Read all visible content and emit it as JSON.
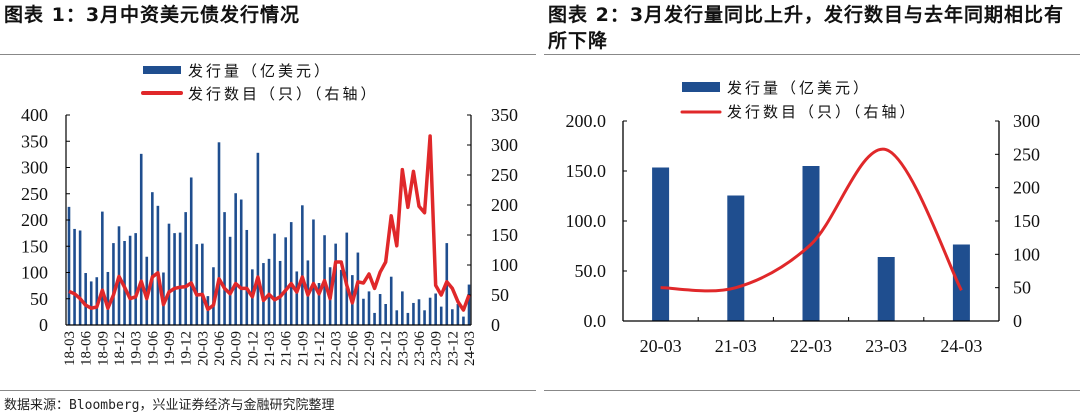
{
  "colors": {
    "bar": "#1F4E8F",
    "line": "#E0282A",
    "axis": "#000000",
    "rule": "#888888"
  },
  "source": "数据来源：Bloomberg，兴业证券经济与金融研究院整理",
  "chart_data": [
    {
      "type": "bar+line",
      "title": "图表 1：3月中资美元债发行情况",
      "legend": {
        "position": "top",
        "bar": "发行量（亿美元）",
        "line": "发行数目（只）（右轴）"
      },
      "x_tick_labels": [
        "18-03",
        "18-06",
        "18-09",
        "18-12",
        "19-03",
        "19-06",
        "19-09",
        "19-12",
        "20-03",
        "20-06",
        "20-09",
        "20-12",
        "21-03",
        "21-06",
        "21-09",
        "21-12",
        "22-03",
        "22-06",
        "22-09",
        "22-12",
        "23-03",
        "23-06",
        "23-09",
        "23-12",
        "24-03"
      ],
      "x_range": [
        "18-03",
        "24-03"
      ],
      "x_frequency": "monthly",
      "y_left": {
        "range": [
          0,
          400
        ],
        "ticks": [
          "0",
          "50",
          "100",
          "150",
          "200",
          "250",
          "300",
          "350",
          "400"
        ]
      },
      "y_right": {
        "range": [
          0,
          350
        ],
        "ticks": [
          "0",
          "50",
          "100",
          "150",
          "200",
          "250",
          "300",
          "350"
        ]
      },
      "grid": false,
      "series": [
        {
          "name": "发行量（亿美元）",
          "type": "bar",
          "axis": "left",
          "values": [
            225,
            183,
            180,
            99,
            83,
            91,
            216,
            101,
            156,
            188,
            160,
            170,
            175,
            326,
            130,
            253,
            227,
            100,
            193,
            175,
            176,
            215,
            281,
            154,
            155,
            55,
            110,
            348,
            215,
            168,
            251,
            239,
            181,
            106,
            328,
            118,
            126,
            174,
            122,
            167,
            196,
            102,
            228,
            123,
            201,
            80,
            171,
            110,
            155,
            105,
            176,
            95,
            138,
            50,
            64,
            23,
            59,
            40,
            92,
            28,
            64,
            23,
            42,
            49,
            28,
            52,
            60,
            35,
            156,
            30,
            40,
            16,
            77
          ]
        },
        {
          "name": "发行数目（只）（右轴）",
          "type": "line",
          "axis": "right",
          "values": [
            56,
            52,
            44,
            33,
            28,
            30,
            58,
            28,
            50,
            81,
            63,
            44,
            47,
            73,
            44,
            80,
            87,
            34,
            55,
            61,
            63,
            64,
            70,
            50,
            51,
            26,
            33,
            77,
            61,
            52,
            69,
            61,
            61,
            47,
            80,
            41,
            51,
            42,
            47,
            58,
            69,
            55,
            80,
            50,
            69,
            52,
            74,
            44,
            105,
            105,
            66,
            37,
            72,
            70,
            85,
            61,
            88,
            105,
            182,
            132,
            259,
            196,
            256,
            198,
            187,
            315,
            66,
            50,
            72,
            61,
            39,
            25,
            50
          ]
        }
      ]
    },
    {
      "type": "bar+line",
      "title": "图表 2：3月发行量同比上升，发行数目与去年同期相比有所下降",
      "legend": {
        "position": "top",
        "bar": "发行量（亿美元）",
        "line": "发行数目（只）（右轴）"
      },
      "categories": [
        "20-03",
        "21-03",
        "22-03",
        "23-03",
        "24-03"
      ],
      "y_left": {
        "range": [
          0,
          200
        ],
        "ticks": [
          "0.0",
          "50.0",
          "100.0",
          "150.0",
          "200.0"
        ]
      },
      "y_right": {
        "range": [
          0,
          300
        ],
        "ticks": [
          "0",
          "50",
          "100",
          "150",
          "200",
          "250",
          "300"
        ]
      },
      "grid": false,
      "series": [
        {
          "name": "发行量（亿美元）",
          "type": "bar",
          "axis": "left",
          "values": [
            153.5,
            125.5,
            155.0,
            64.0,
            76.5
          ]
        },
        {
          "name": "发行数目（只）（右轴）",
          "type": "line",
          "axis": "right",
          "smooth": true,
          "values": [
            50,
            50,
            115,
            257,
            46
          ]
        }
      ]
    }
  ]
}
